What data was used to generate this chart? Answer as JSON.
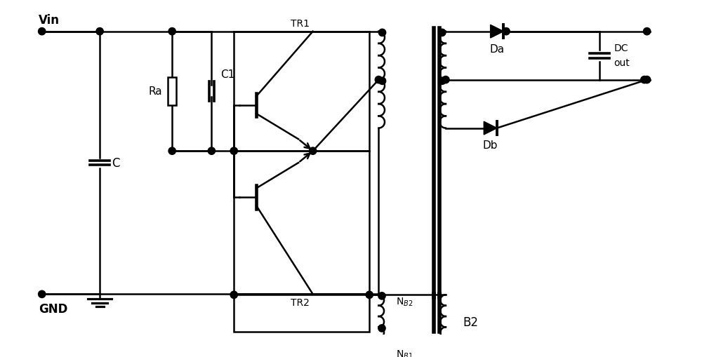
{
  "bg": "#ffffff",
  "lc": "#000000",
  "lw": 1.8,
  "figsize": [
    10.0,
    5.1
  ],
  "dpi": 100,
  "xlim": [
    0,
    10
  ],
  "ylim": [
    0,
    5.1
  ]
}
